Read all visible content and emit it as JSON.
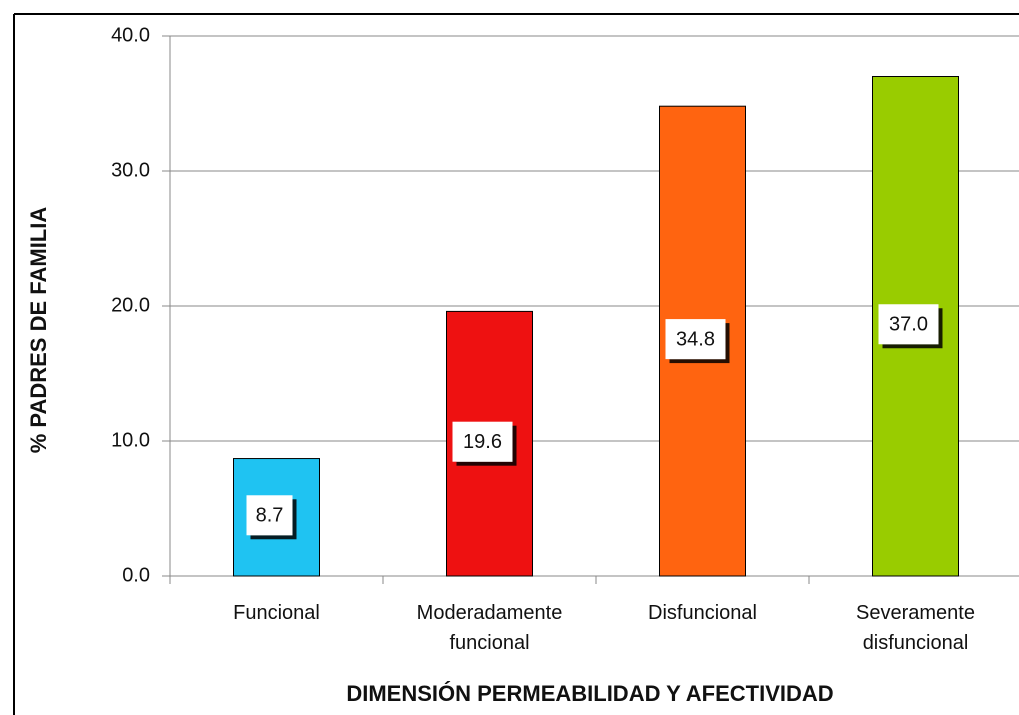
{
  "chart_data": {
    "type": "bar",
    "categories": [
      "Funcional",
      "Moderadamente funcional",
      "Disfuncional",
      "Severamente disfuncional"
    ],
    "values": [
      8.7,
      19.6,
      34.8,
      37.0
    ],
    "value_labels": [
      "8.7",
      "19.6",
      "34.8",
      "37.0"
    ],
    "colors": [
      "#1fc3f2",
      "#ee1111",
      "#ff6410",
      "#99cc00"
    ],
    "y_label": "% PADRES DE FAMILIA",
    "x_label": "DIMENSIÓN PERMEABILIDAD Y AFECTIVIDAD",
    "ylim": [
      0,
      40
    ],
    "yticks": [
      {
        "value": 0,
        "label": "0.0"
      },
      {
        "value": 10,
        "label": "10.0"
      },
      {
        "value": 20,
        "label": "20.0"
      },
      {
        "value": 30,
        "label": "30.0"
      },
      {
        "value": 40,
        "label": "40.0"
      }
    ],
    "grid": true
  }
}
